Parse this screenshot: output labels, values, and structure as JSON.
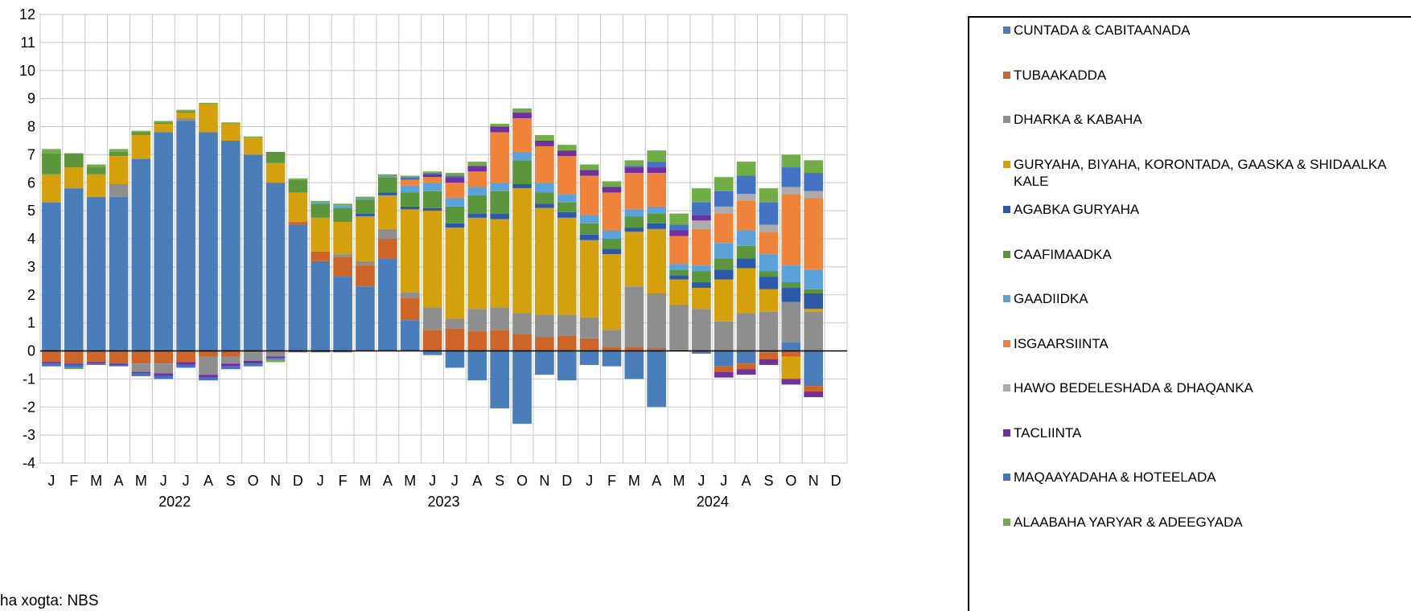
{
  "chart_data": {
    "type": "bar",
    "stacked": true,
    "ylim": [
      -4,
      12
    ],
    "yticks": [
      -4,
      -3,
      -2,
      -1,
      0,
      1,
      2,
      3,
      4,
      5,
      6,
      7,
      8,
      9,
      10,
      11,
      12
    ],
    "grid": true,
    "legend_position": "right",
    "months": [
      "J",
      "F",
      "M",
      "A",
      "M",
      "J",
      "J",
      "A",
      "S",
      "O",
      "N",
      "D",
      "J",
      "F",
      "M",
      "A",
      "M",
      "J",
      "J",
      "A",
      "S",
      "O",
      "N",
      "D",
      "J",
      "F",
      "M",
      "A",
      "M",
      "J",
      "J",
      "A",
      "S",
      "O",
      "N",
      "D"
    ],
    "years": [
      {
        "label": "2022",
        "center_index": 5.5
      },
      {
        "label": "2023",
        "center_index": 17.5
      },
      {
        "label": "2024",
        "center_index": 29.5
      }
    ],
    "series": [
      {
        "name": "CUNTADA & CABITAANADA",
        "color": "#4A7EBB",
        "values": [
          5.3,
          5.8,
          5.5,
          5.5,
          6.85,
          7.8,
          8.2,
          7.8,
          7.5,
          7.0,
          6.0,
          4.5,
          3.2,
          2.65,
          2.3,
          3.3,
          1.1,
          -0.15,
          -0.6,
          -1.05,
          -2.05,
          -2.6,
          -0.85,
          -1.05,
          -0.5,
          -0.55,
          -1.0,
          -2.0,
          0,
          -0.1,
          -0.55,
          -0.45,
          -0.05,
          0.3,
          -1.25,
          0
        ]
      },
      {
        "name": "TUBAAKADDA",
        "color": "#CC6527",
        "values": [
          -0.4,
          -0.45,
          -0.4,
          -0.45,
          -0.45,
          -0.45,
          -0.4,
          -0.2,
          -0.2,
          -0.05,
          0,
          0.1,
          0.35,
          0.7,
          0.75,
          0.7,
          0.8,
          0.75,
          0.8,
          0.7,
          0.75,
          0.6,
          0.5,
          0.55,
          0.45,
          0.15,
          0.15,
          0.1,
          0.05,
          0,
          -0.2,
          -0.2,
          -0.25,
          -0.2,
          -0.2,
          0
        ]
      },
      {
        "name": "DHARKA & KABAHA",
        "color": "#8E8E8E",
        "values": [
          0,
          0,
          0,
          0.45,
          -0.3,
          -0.35,
          0.1,
          -0.65,
          -0.25,
          -0.3,
          -0.2,
          0,
          0,
          0.1,
          0.15,
          0.35,
          0.2,
          0.8,
          0.35,
          0.8,
          0.8,
          0.75,
          0.8,
          0.75,
          0.75,
          0.6,
          2.15,
          1.95,
          1.6,
          1.5,
          1.05,
          1.35,
          1.4,
          1.45,
          1.4,
          0
        ]
      },
      {
        "name": "GURYAHA, BIYAHA, KORONTADA, GAASKA & SHIDAALKA KALE",
        "color": "#D4A00C",
        "values": [
          1.0,
          0.75,
          0.8,
          1.0,
          0.85,
          0.3,
          0.2,
          1.0,
          0.6,
          0.6,
          0.7,
          1.05,
          1.2,
          1.15,
          1.6,
          1.2,
          2.95,
          3.45,
          3.25,
          3.25,
          3.15,
          4.45,
          3.8,
          3.45,
          2.75,
          2.7,
          1.95,
          2.3,
          0.9,
          0.75,
          1.5,
          1.6,
          0.8,
          -0.8,
          0.1,
          0
        ]
      },
      {
        "name": "AGABKA GURYAHA",
        "color": "#2D5AA6",
        "values": [
          0,
          0,
          0,
          0,
          0,
          0,
          0,
          0,
          0,
          0,
          0,
          0,
          0,
          0,
          0.1,
          0.1,
          0.1,
          0.1,
          0.15,
          0.15,
          0.2,
          0.15,
          0.15,
          0.2,
          0.2,
          0.2,
          0.15,
          0.2,
          0.15,
          0.2,
          0.35,
          0.35,
          0.45,
          0.5,
          0.55,
          0
        ]
      },
      {
        "name": "CAAFIMAADKA",
        "color": "#5C963C",
        "values": [
          0.75,
          0.5,
          0.25,
          0.15,
          0.1,
          0.05,
          0.05,
          0,
          0,
          0,
          0.4,
          0.45,
          0.5,
          0.5,
          0.5,
          0.55,
          0.5,
          0.6,
          0.6,
          0.65,
          0.8,
          0.85,
          0.4,
          0.35,
          0.4,
          0.35,
          0.4,
          0.35,
          0.2,
          0.4,
          0.4,
          0.45,
          0.2,
          0.2,
          0.15,
          0
        ]
      },
      {
        "name": "GAADIIDKA",
        "color": "#5BA2DA",
        "values": [
          0,
          0,
          0,
          0,
          0,
          0,
          0,
          0,
          0,
          0,
          0,
          0,
          0.05,
          0.1,
          0.05,
          0.05,
          0.25,
          0.3,
          0.3,
          0.3,
          0.3,
          0.3,
          0.35,
          0.3,
          0.3,
          0.3,
          0.25,
          0.25,
          0.2,
          0.2,
          0.55,
          0.55,
          0.6,
          0.6,
          0.7,
          0
        ]
      },
      {
        "name": "ISGAARSIINTA",
        "color": "#F0833A",
        "values": [
          0,
          0,
          0,
          0,
          0,
          0,
          0,
          0,
          0,
          0,
          0,
          0,
          0,
          0,
          0,
          0,
          0.2,
          0.2,
          0.55,
          0.55,
          1.8,
          1.2,
          1.3,
          1.35,
          1.4,
          1.35,
          1.3,
          1.2,
          1.0,
          1.3,
          1.05,
          1.05,
          0.8,
          2.55,
          2.55,
          0
        ]
      },
      {
        "name": "HAWO BEDELESHADA & DHAQANKA",
        "color": "#ABABAB",
        "values": [
          0,
          0,
          0,
          0,
          0,
          0,
          0,
          0,
          0,
          0,
          0,
          0,
          0,
          0,
          0,
          0,
          0,
          0,
          0,
          0,
          0,
          0,
          0,
          0,
          0,
          0,
          0,
          0,
          0,
          0.3,
          0.25,
          0.25,
          0.25,
          0.25,
          0.25,
          0
        ]
      },
      {
        "name": "TACLIINTA",
        "color": "#7030A0",
        "values": [
          -0.05,
          -0.05,
          -0.05,
          -0.05,
          -0.05,
          -0.1,
          -0.1,
          -0.1,
          -0.1,
          -0.1,
          -0.05,
          0,
          0,
          0,
          0,
          0,
          0,
          0.1,
          0.2,
          0.2,
          0.2,
          0.2,
          0.2,
          0.2,
          0.2,
          0.2,
          0.2,
          0.2,
          0.2,
          0.2,
          -0.2,
          -0.2,
          -0.2,
          -0.2,
          -0.2,
          0
        ]
      },
      {
        "name": "MAQAAYADAHA & HOTEELADA",
        "color": "#4472C4",
        "values": [
          -0.1,
          -0.1,
          -0.05,
          -0.05,
          -0.1,
          -0.1,
          -0.1,
          -0.1,
          -0.1,
          -0.1,
          -0.05,
          -0.05,
          -0.05,
          -0.05,
          0,
          0,
          0.1,
          0.05,
          0.05,
          0,
          0,
          0,
          0,
          0,
          0,
          0,
          0.05,
          0.2,
          0.2,
          0.45,
          0.55,
          0.65,
          0.8,
          0.7,
          0.65,
          0
        ]
      },
      {
        "name": "ALAABAHA YARYAR & ADEEGYADA",
        "color": "#70AD47",
        "values": [
          0.15,
          -0.05,
          0.1,
          0.1,
          0.05,
          0.05,
          0.05,
          0.05,
          0.05,
          0.05,
          -0.1,
          0.05,
          0.05,
          0.05,
          0.05,
          0.05,
          0.05,
          0.05,
          0.1,
          0.15,
          0.1,
          0.15,
          0.2,
          0.2,
          0.2,
          0.2,
          0.2,
          0.4,
          0.4,
          0.5,
          0.5,
          0.5,
          0.5,
          0.45,
          0.45,
          0
        ]
      }
    ]
  },
  "source_note": "ha xogta: NBS"
}
